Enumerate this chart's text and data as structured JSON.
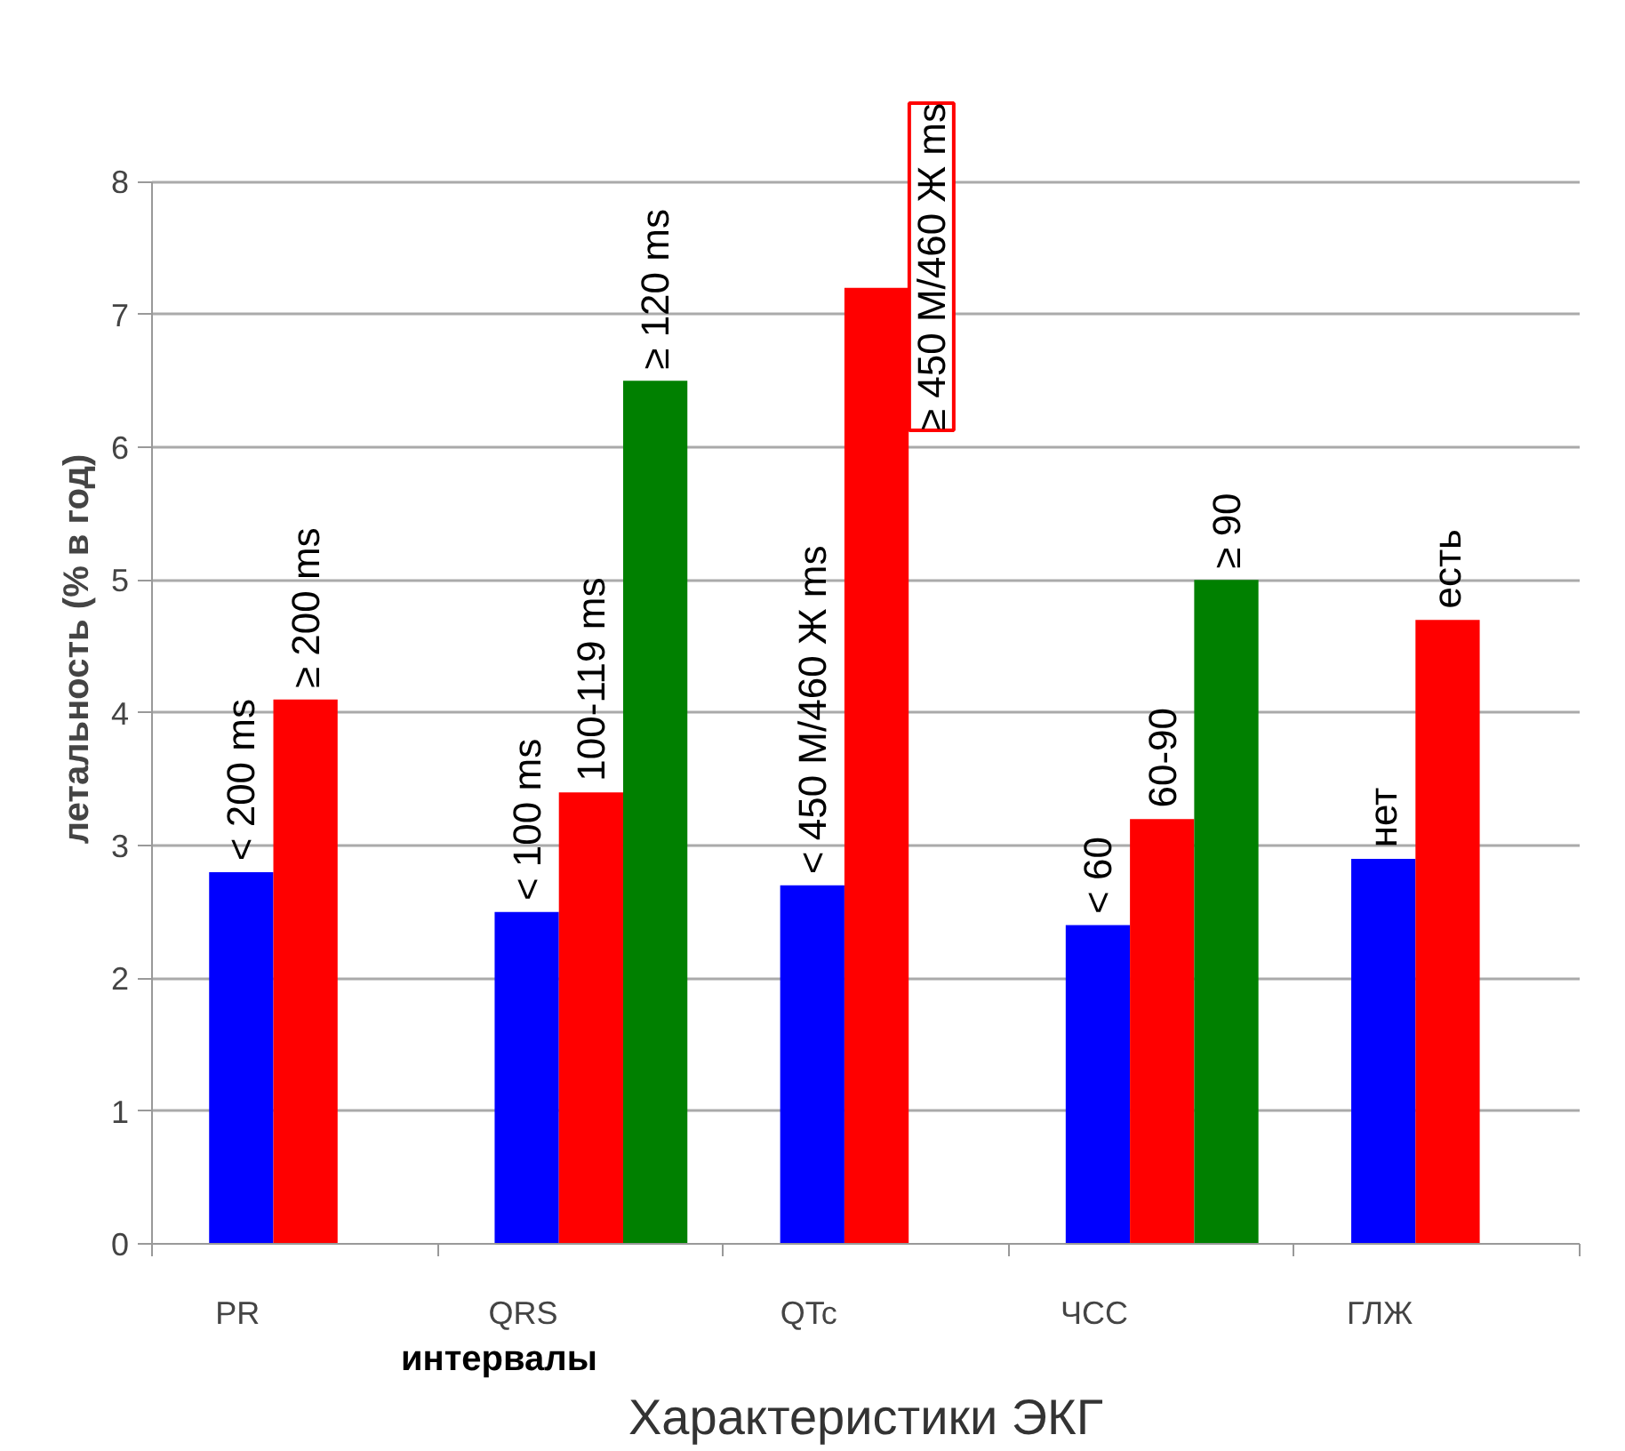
{
  "chart_data": {
    "type": "bar",
    "xlabel": "Характеристики ЭКГ",
    "ylabel": "летальность (% в год)",
    "categories": [
      "PR",
      "QRS",
      "QTc",
      "ЧСС",
      "ГЛЖ"
    ],
    "series": [
      {
        "color": "#0000ff",
        "values": [
          2.8,
          2.5,
          2.7,
          2.4,
          2.9
        ],
        "value_labels": [
          "< 200 ms",
          "< 100 ms",
          "< 450 M/460 Ж ms",
          "< 60",
          "нет"
        ]
      },
      {
        "color": "#ff0000",
        "values": [
          4.1,
          3.4,
          7.2,
          3.2,
          4.7
        ],
        "value_labels": [
          "≥ 200 ms",
          "100-119 ms",
          "≥ 450 M/460 Ж ms",
          "60-90",
          "есть"
        ]
      },
      {
        "color": "#008000",
        "values": [
          null,
          6.5,
          null,
          5.0,
          null
        ],
        "value_labels": [
          null,
          "≥ 120 ms",
          null,
          "≥ 90",
          null
        ]
      }
    ],
    "ylim": [
      0,
      8
    ],
    "yticks": [
      0,
      1,
      2,
      3,
      4,
      5,
      6,
      7,
      8
    ],
    "grid": "y",
    "annotations": [
      "интервалы"
    ]
  }
}
